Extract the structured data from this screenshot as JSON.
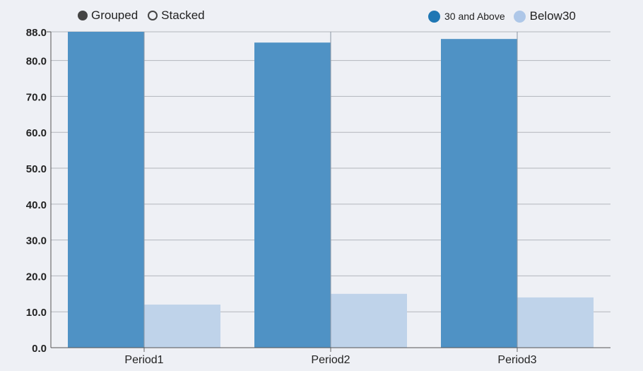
{
  "controls": {
    "grouped_label": "Grouped",
    "stacked_label": "Stacked",
    "selected": "grouped"
  },
  "legend": {
    "series": [
      {
        "label": "30 and Above",
        "color": "#1f77b4"
      },
      {
        "label": "Below30",
        "color": "#aec7e8"
      }
    ]
  },
  "chart_data": {
    "type": "bar",
    "mode": "grouped",
    "categories": [
      "Period1",
      "Period2",
      "Period3"
    ],
    "series": [
      {
        "name": "30 and Above",
        "values": [
          88.0,
          85.0,
          86.0
        ],
        "color": "#4f92c5"
      },
      {
        "name": "Below30",
        "values": [
          12.0,
          15.0,
          14.0
        ],
        "color": "#bfd3ea"
      }
    ],
    "ylim": [
      0,
      88
    ],
    "y_ticks": [
      "0.0",
      "10.0",
      "20.0",
      "30.0",
      "40.0",
      "50.0",
      "60.0",
      "70.0",
      "80.0",
      "88.0"
    ],
    "y_tick_values": [
      0,
      10,
      20,
      30,
      40,
      50,
      60,
      70,
      80,
      88
    ],
    "grid": true,
    "legend_position": "top-right"
  }
}
